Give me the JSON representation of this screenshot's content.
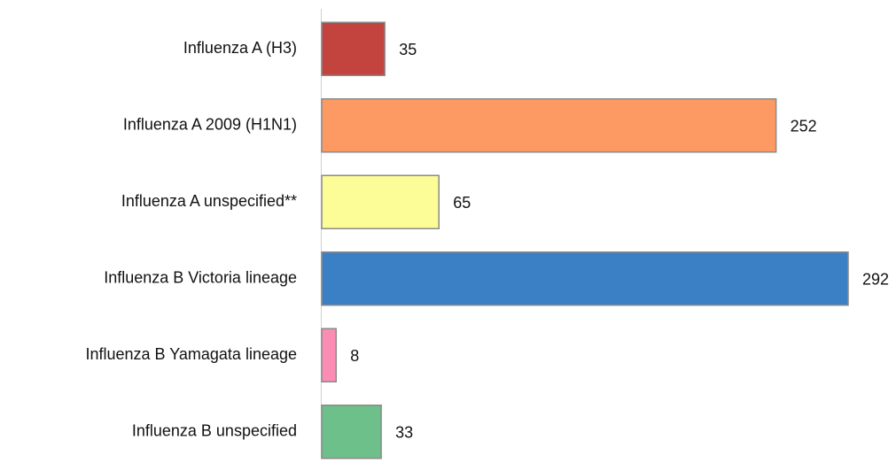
{
  "chart_data": {
    "type": "bar",
    "orientation": "horizontal",
    "categories": [
      "Influenza A (H3)",
      "Influenza A 2009 (H1N1)",
      "Influenza A unspecified**",
      "Influenza B Victoria lineage",
      "Influenza B Yamagata lineage",
      "Influenza B unspecified"
    ],
    "values": [
      35,
      252,
      65,
      292,
      8,
      33
    ],
    "colors": [
      "#c3433f",
      "#fd9a63",
      "#fdfd98",
      "#3b80c4",
      "#fb8db5",
      "#6dc08a"
    ]
  }
}
